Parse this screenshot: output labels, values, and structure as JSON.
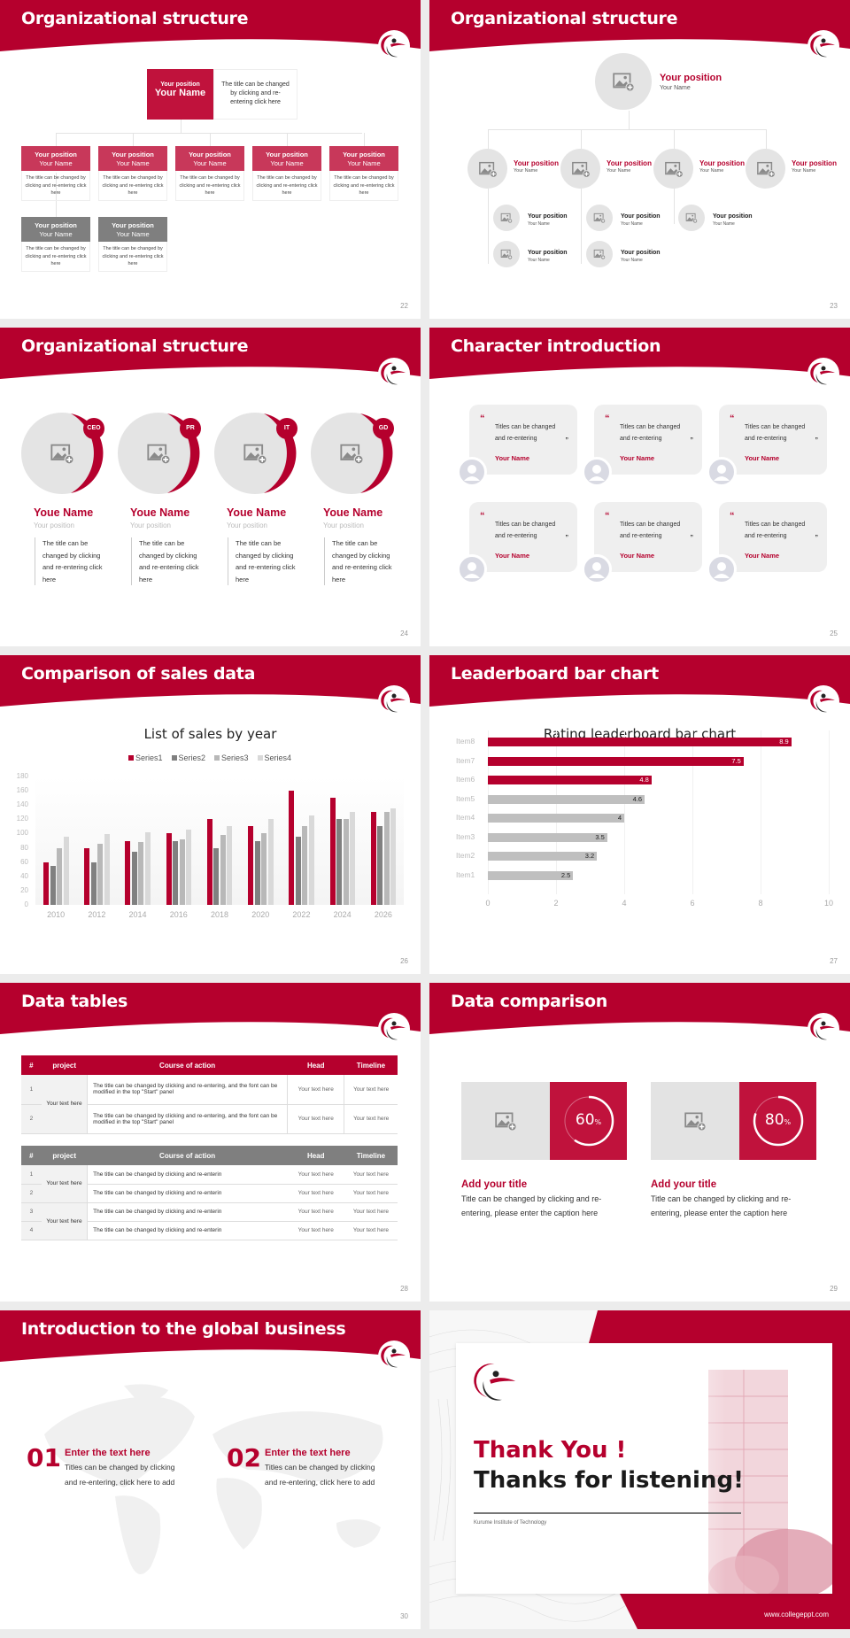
{
  "colors": {
    "brand_red": "#b5002d",
    "card_red": "#c8385a",
    "gray_header": "#7f7f7f",
    "light_gray": "#e4e4e4"
  },
  "slides": {
    "s22": {
      "title": "Organizational structure",
      "page": "22",
      "top": {
        "position": "Your position",
        "name": "Your Name",
        "desc": "The title can be changed by clicking and re-entering click here"
      },
      "cards": [
        {
          "position": "Your position",
          "name": "Your Name",
          "desc": "The title can be changed by clicking and re-entering click here"
        },
        {
          "position": "Your position",
          "name": "Your Name",
          "desc": "The title can be changed by clicking and re-entering click here"
        },
        {
          "position": "Your position",
          "name": "Your Name",
          "desc": "The title can be changed by clicking and re-entering click here"
        },
        {
          "position": "Your position",
          "name": "Your Name",
          "desc": "The title can be changed by clicking and re-entering click here"
        },
        {
          "position": "Your position",
          "name": "Your Name",
          "desc": "The title can be changed by clicking and re-entering click here"
        },
        {
          "position": "Your position",
          "name": "Your Name",
          "desc": "The title can be changed by clicking and re-entering click here"
        },
        {
          "position": "Your position",
          "name": "Your Name",
          "desc": "The title can be changed by clicking and re-entering click here"
        }
      ]
    },
    "s23": {
      "title": "Organizational structure",
      "page": "23",
      "top": {
        "position": "Your position",
        "name": "Your Name"
      },
      "level2": [
        {
          "position": "Your position",
          "name": "Your Name"
        },
        {
          "position": "Your position",
          "name": "Your Name"
        },
        {
          "position": "Your position",
          "name": "Your Name"
        },
        {
          "position": "Your position",
          "name": "Your Name"
        }
      ],
      "level3": [
        {
          "position": "Your position",
          "name": "Your Name"
        },
        {
          "position": "Your position",
          "name": "Your Name"
        },
        {
          "position": "Your position",
          "name": "Your Name"
        },
        {
          "position": "Your position",
          "name": "Your Name"
        },
        {
          "position": "Your position",
          "name": "Your Name"
        }
      ]
    },
    "s24": {
      "title": "Organizational structure",
      "page": "24",
      "people": [
        {
          "tag": "CEO",
          "name": "Youe Name",
          "position": "Your position",
          "desc": "The title can be changed by clicking and re-entering click here"
        },
        {
          "tag": "PR",
          "name": "Youe Name",
          "position": "Your position",
          "desc": "The title can be changed by clicking and re-entering click here"
        },
        {
          "tag": "IT",
          "name": "Youe Name",
          "position": "Your position",
          "desc": "The title can be changed by clicking and re-entering click here"
        },
        {
          "tag": "GD",
          "name": "Youe Name",
          "position": "Your position",
          "desc": "The title can be changed by clicking and re-entering click here"
        }
      ]
    },
    "s25": {
      "title": "Character introduction",
      "page": "25",
      "quotes": [
        {
          "text": "Titles can be changed and re-entering",
          "name": "Your Name"
        },
        {
          "text": "Titles can be changed and re-entering",
          "name": "Your Name"
        },
        {
          "text": "Titles can be changed and re-entering",
          "name": "Your Name"
        },
        {
          "text": "Titles can be changed and re-entering",
          "name": "Your Name"
        },
        {
          "text": "Titles can be changed and re-entering",
          "name": "Your Name"
        },
        {
          "text": "Titles can be changed and re-entering",
          "name": "Your Name"
        }
      ],
      "open_quote": "“",
      "close_quote": "”"
    },
    "s26": {
      "title": "Comparison of sales data",
      "page": "26"
    },
    "s27": {
      "title": "Leaderboard bar chart",
      "page": "27"
    },
    "s28": {
      "title": "Data tables",
      "page": "28",
      "headers": [
        "#",
        "project",
        "Course of action",
        "Head",
        "Timeline"
      ],
      "table1": {
        "project": "Your text here",
        "rows": [
          {
            "num": "1",
            "action": "The title can be changed by clicking and re-entering, and the font can be modified in the top \"Start\" panel",
            "head": "Your text here",
            "timeline": "Your text here"
          },
          {
            "num": "2",
            "action": "The title can be changed by clicking and re-entering, and the font can be modified in the top \"Start\" panel",
            "head": "Your text here",
            "timeline": "Your text here"
          }
        ]
      },
      "table2": {
        "projects": [
          "Your text here",
          "Your text here"
        ],
        "rows": [
          {
            "num": "1",
            "action": "The title can be changed by clicking and re-enterin",
            "head": "Your text here",
            "timeline": "Your text here"
          },
          {
            "num": "2",
            "action": "The title can be changed by clicking and re-enterin",
            "head": "Your text here",
            "timeline": "Your text here"
          },
          {
            "num": "3",
            "action": "The title can be changed by clicking and re-enterin",
            "head": "Your text here",
            "timeline": "Your text here"
          },
          {
            "num": "4",
            "action": "The title can be changed by clicking and re-enterin",
            "head": "Your text here",
            "timeline": "Your text here"
          }
        ]
      }
    },
    "s29": {
      "title": "Data comparison",
      "page": "29",
      "items": [
        {
          "percent": "60",
          "unit": "%",
          "value": 60,
          "title": "Add your title",
          "text": "Title can be changed by clicking and re-entering, please enter the caption here"
        },
        {
          "percent": "80",
          "unit": "%",
          "value": 80,
          "title": "Add your title",
          "text": "Title can be changed by clicking and re-entering, please enter the caption here"
        }
      ]
    },
    "s30": {
      "title": "Introduction to the global business",
      "page": "30",
      "items": [
        {
          "num": "01",
          "title": "Enter the text here",
          "text": "Titles can be changed by clicking and re-entering, click here to add"
        },
        {
          "num": "02",
          "title": "Enter the text here",
          "text": "Titles can be changed by clicking and re-entering, click here to add"
        }
      ]
    },
    "s31": {
      "thank_you": "Thank You !",
      "thanks": "Thanks for listening!",
      "institution": "Kurume Institute of Technology",
      "website": "www.collegeppt.com"
    }
  },
  "chart_data": [
    {
      "type": "bar",
      "title": "List of sales by year",
      "categories": [
        "2010",
        "2012",
        "2014",
        "2016",
        "2018",
        "2020",
        "2022",
        "2024",
        "2026"
      ],
      "series": [
        {
          "name": "Series1",
          "color": "#b5002d",
          "values": [
            60,
            80,
            90,
            100,
            120,
            110,
            160,
            150,
            130
          ]
        },
        {
          "name": "Series2",
          "color": "#808080",
          "values": [
            55,
            60,
            75,
            90,
            80,
            90,
            96,
            120,
            110
          ]
        },
        {
          "name": "Series3",
          "color": "#b8b8b8",
          "values": [
            80,
            86,
            88,
            92,
            98,
            100,
            110,
            120,
            130
          ]
        },
        {
          "name": "Series4",
          "color": "#d9d9d9",
          "values": [
            95,
            99,
            102,
            105,
            110,
            120,
            126,
            130,
            135
          ]
        }
      ],
      "yticks": [
        "0",
        "20",
        "40",
        "60",
        "80",
        "100",
        "120",
        "140",
        "160",
        "180"
      ],
      "ylim": [
        0,
        180
      ],
      "legend_position": "top",
      "grid": false
    },
    {
      "type": "bar",
      "orientation": "horizontal",
      "title": "Rating leaderboard bar chart",
      "categories": [
        "Item8",
        "Item7",
        "Item6",
        "Item5",
        "Item4",
        "Item3",
        "Item2",
        "Item1"
      ],
      "values": [
        8.9,
        7.5,
        4.8,
        4.6,
        4,
        3.5,
        3.2,
        2.5
      ],
      "labels": [
        "8.9",
        "7.5",
        "4.8",
        "4.6",
        "4",
        "3.5",
        "3.2",
        "2.5"
      ],
      "colors": [
        "#b5002d",
        "#b5002d",
        "#b5002d",
        "#bfbfbf",
        "#bfbfbf",
        "#bfbfbf",
        "#bfbfbf",
        "#bfbfbf"
      ],
      "xticks": [
        "0",
        "2",
        "4",
        "6",
        "8",
        "10"
      ],
      "xlim": [
        0,
        10
      ],
      "grid": true
    }
  ]
}
